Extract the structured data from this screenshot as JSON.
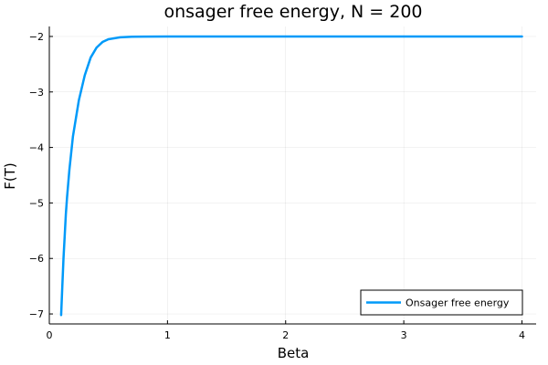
{
  "chart_data": {
    "type": "line",
    "title": "onsager free energy, N = 200",
    "xlabel": "Beta",
    "ylabel": "F(T)",
    "xlim": [
      0,
      4.12
    ],
    "ylim": [
      -7.18,
      -1.82
    ],
    "xticks": [
      0,
      1,
      2,
      3,
      4
    ],
    "yticks": [
      -7,
      -6,
      -5,
      -4,
      -3,
      -2
    ],
    "grid": true,
    "legend_position": "bottom-right",
    "series": [
      {
        "name": "Onsager free energy",
        "color": "#009af9",
        "x": [
          0.1,
          0.11,
          0.12,
          0.13,
          0.14,
          0.15,
          0.17,
          0.2,
          0.25,
          0.3,
          0.35,
          0.4,
          0.45,
          0.5,
          0.6,
          0.7,
          0.8,
          1.0,
          1.5,
          2.0,
          3.0,
          4.0
        ],
        "y": [
          -7.02,
          -6.5,
          -6.0,
          -5.6,
          -5.2,
          -4.9,
          -4.4,
          -3.8,
          -3.15,
          -2.7,
          -2.38,
          -2.2,
          -2.1,
          -2.05,
          -2.015,
          -2.005,
          -2.002,
          -2.0,
          -2.0,
          -2.0,
          -2.0,
          -2.0
        ]
      }
    ]
  }
}
